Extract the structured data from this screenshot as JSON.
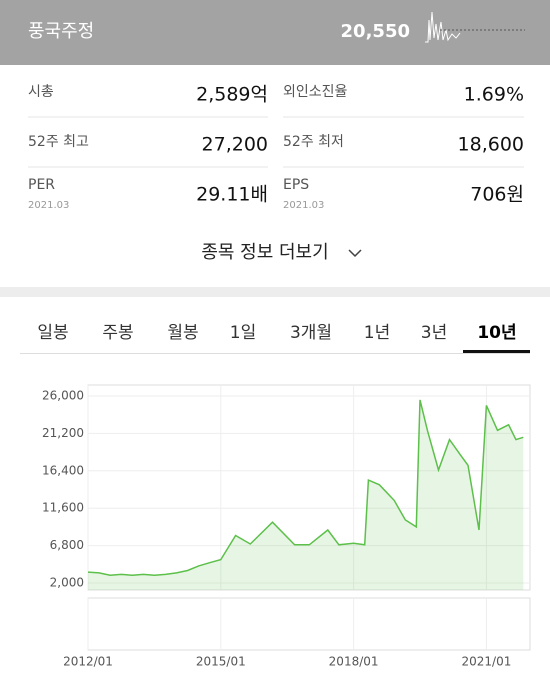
{
  "header": {
    "name": "풍국주정",
    "price": "20,550"
  },
  "stats": [
    {
      "label": "시총",
      "value": "2,589억"
    },
    {
      "label": "외인소진율",
      "value": "1.69%"
    },
    {
      "label": "52주 최고",
      "value": "27,200"
    },
    {
      "label": "52주 최저",
      "value": "18,600"
    },
    {
      "label": "PER",
      "sublabel": "2021.03",
      "value": "29.11배"
    },
    {
      "label": "EPS",
      "sublabel": "2021.03",
      "value": "706원"
    }
  ],
  "more": "종목 정보 더보기",
  "tabs": [
    "일봉",
    "주봉",
    "월봉",
    "1일",
    "3개월",
    "1년",
    "3년",
    "10년"
  ],
  "active_tab": 7,
  "chart_data": {
    "type": "area",
    "color": "#5cc04a",
    "x": [
      "2012/01",
      "2012/04",
      "2012/07",
      "2012/10",
      "2013/01",
      "2013/04",
      "2013/07",
      "2013/10",
      "2014/01",
      "2014/04",
      "2014/07",
      "2014/10",
      "2015/01",
      "2015/05",
      "2015/09",
      "2016/03",
      "2016/09",
      "2017/01",
      "2017/06",
      "2017/09",
      "2018/01",
      "2018/04",
      "2018/05",
      "2018/08",
      "2018/12",
      "2019/03",
      "2019/06",
      "2019/07",
      "2019/09",
      "2019/12",
      "2020/03",
      "2020/06",
      "2020/08",
      "2020/11",
      "2021/01",
      "2021/04",
      "2021/07",
      "2021/09",
      "2021/11"
    ],
    "values": [
      3400,
      3300,
      3000,
      3100,
      3000,
      3100,
      3000,
      3100,
      3300,
      3600,
      4200,
      4600,
      5000,
      8100,
      7000,
      9800,
      6900,
      6900,
      8800,
      6900,
      7100,
      6900,
      15200,
      14600,
      12600,
      10100,
      9200,
      25500,
      21600,
      16500,
      20400,
      18400,
      17100,
      8800,
      24800,
      21600,
      22300,
      20400,
      20700
    ],
    "xlim": [
      "2012/01",
      "2021/12"
    ],
    "xticks": [
      "2012/01",
      "2015/01",
      "2018/01",
      "2021/01"
    ],
    "ylim": [
      2000,
      26000
    ],
    "yticks": [
      {
        "value": 2000,
        "label": "2,000"
      },
      {
        "value": 6800,
        "label": "6,800"
      },
      {
        "value": 11600,
        "label": "11,600"
      },
      {
        "value": 16400,
        "label": "16,400"
      },
      {
        "value": 21200,
        "label": "21,200"
      },
      {
        "value": 26000,
        "label": "26,000"
      }
    ],
    "grid": true
  }
}
